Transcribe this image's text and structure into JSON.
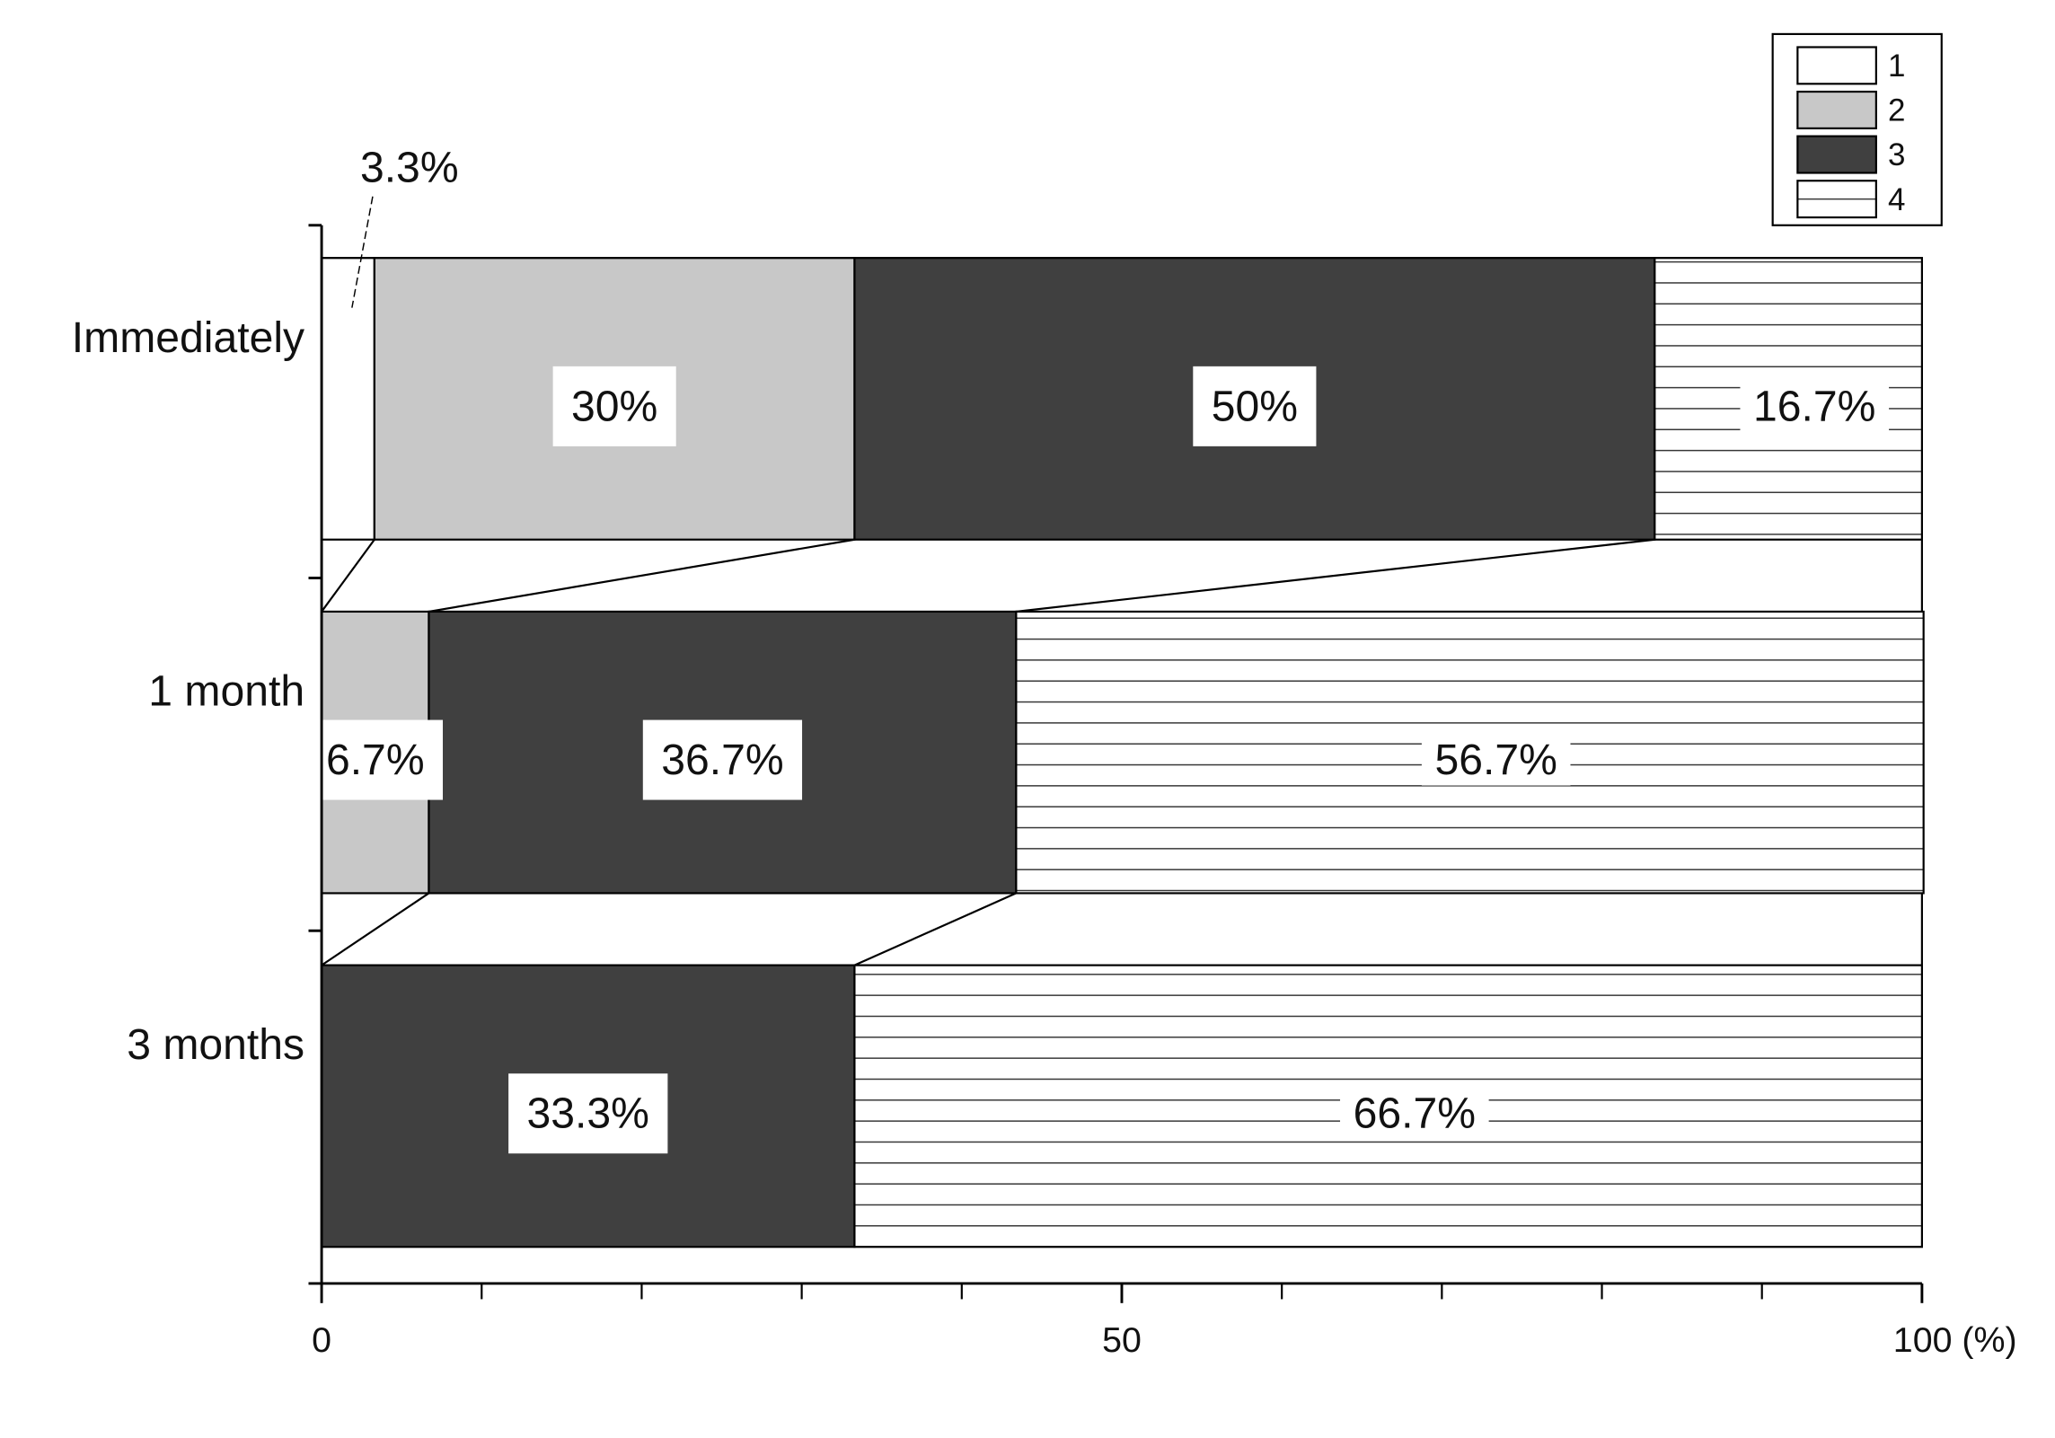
{
  "chart_data": {
    "type": "bar",
    "orientation": "horizontal",
    "stacked": true,
    "categories": [
      "Immediately",
      "1 month",
      "3 months"
    ],
    "series": [
      {
        "name": "1",
        "color": "#ffffff",
        "values": [
          3.3,
          0,
          0
        ],
        "value_labels": [
          "3.3%",
          null,
          null
        ]
      },
      {
        "name": "2",
        "color": "#c8c8c8",
        "values": [
          30,
          6.7,
          0
        ],
        "value_labels": [
          "30%",
          "6.7%",
          null
        ]
      },
      {
        "name": "3",
        "color": "#404040",
        "values": [
          50,
          36.7,
          33.3
        ],
        "value_labels": [
          "50%",
          "36.7%",
          "33.3%"
        ]
      },
      {
        "name": "4",
        "color": "#ffffff",
        "pattern": "horizontal-lines",
        "values": [
          16.7,
          56.7,
          66.7
        ],
        "value_labels": [
          "16.7%",
          "56.7%",
          "66.7%"
        ]
      }
    ],
    "xlim": [
      0,
      100
    ],
    "xticks": [
      0,
      50,
      {
        "value": 100,
        "label": "100 (%)"
      }
    ],
    "xminorticks": [
      10,
      20,
      30,
      40,
      60,
      70,
      80,
      90
    ],
    "legend": "top-right"
  }
}
